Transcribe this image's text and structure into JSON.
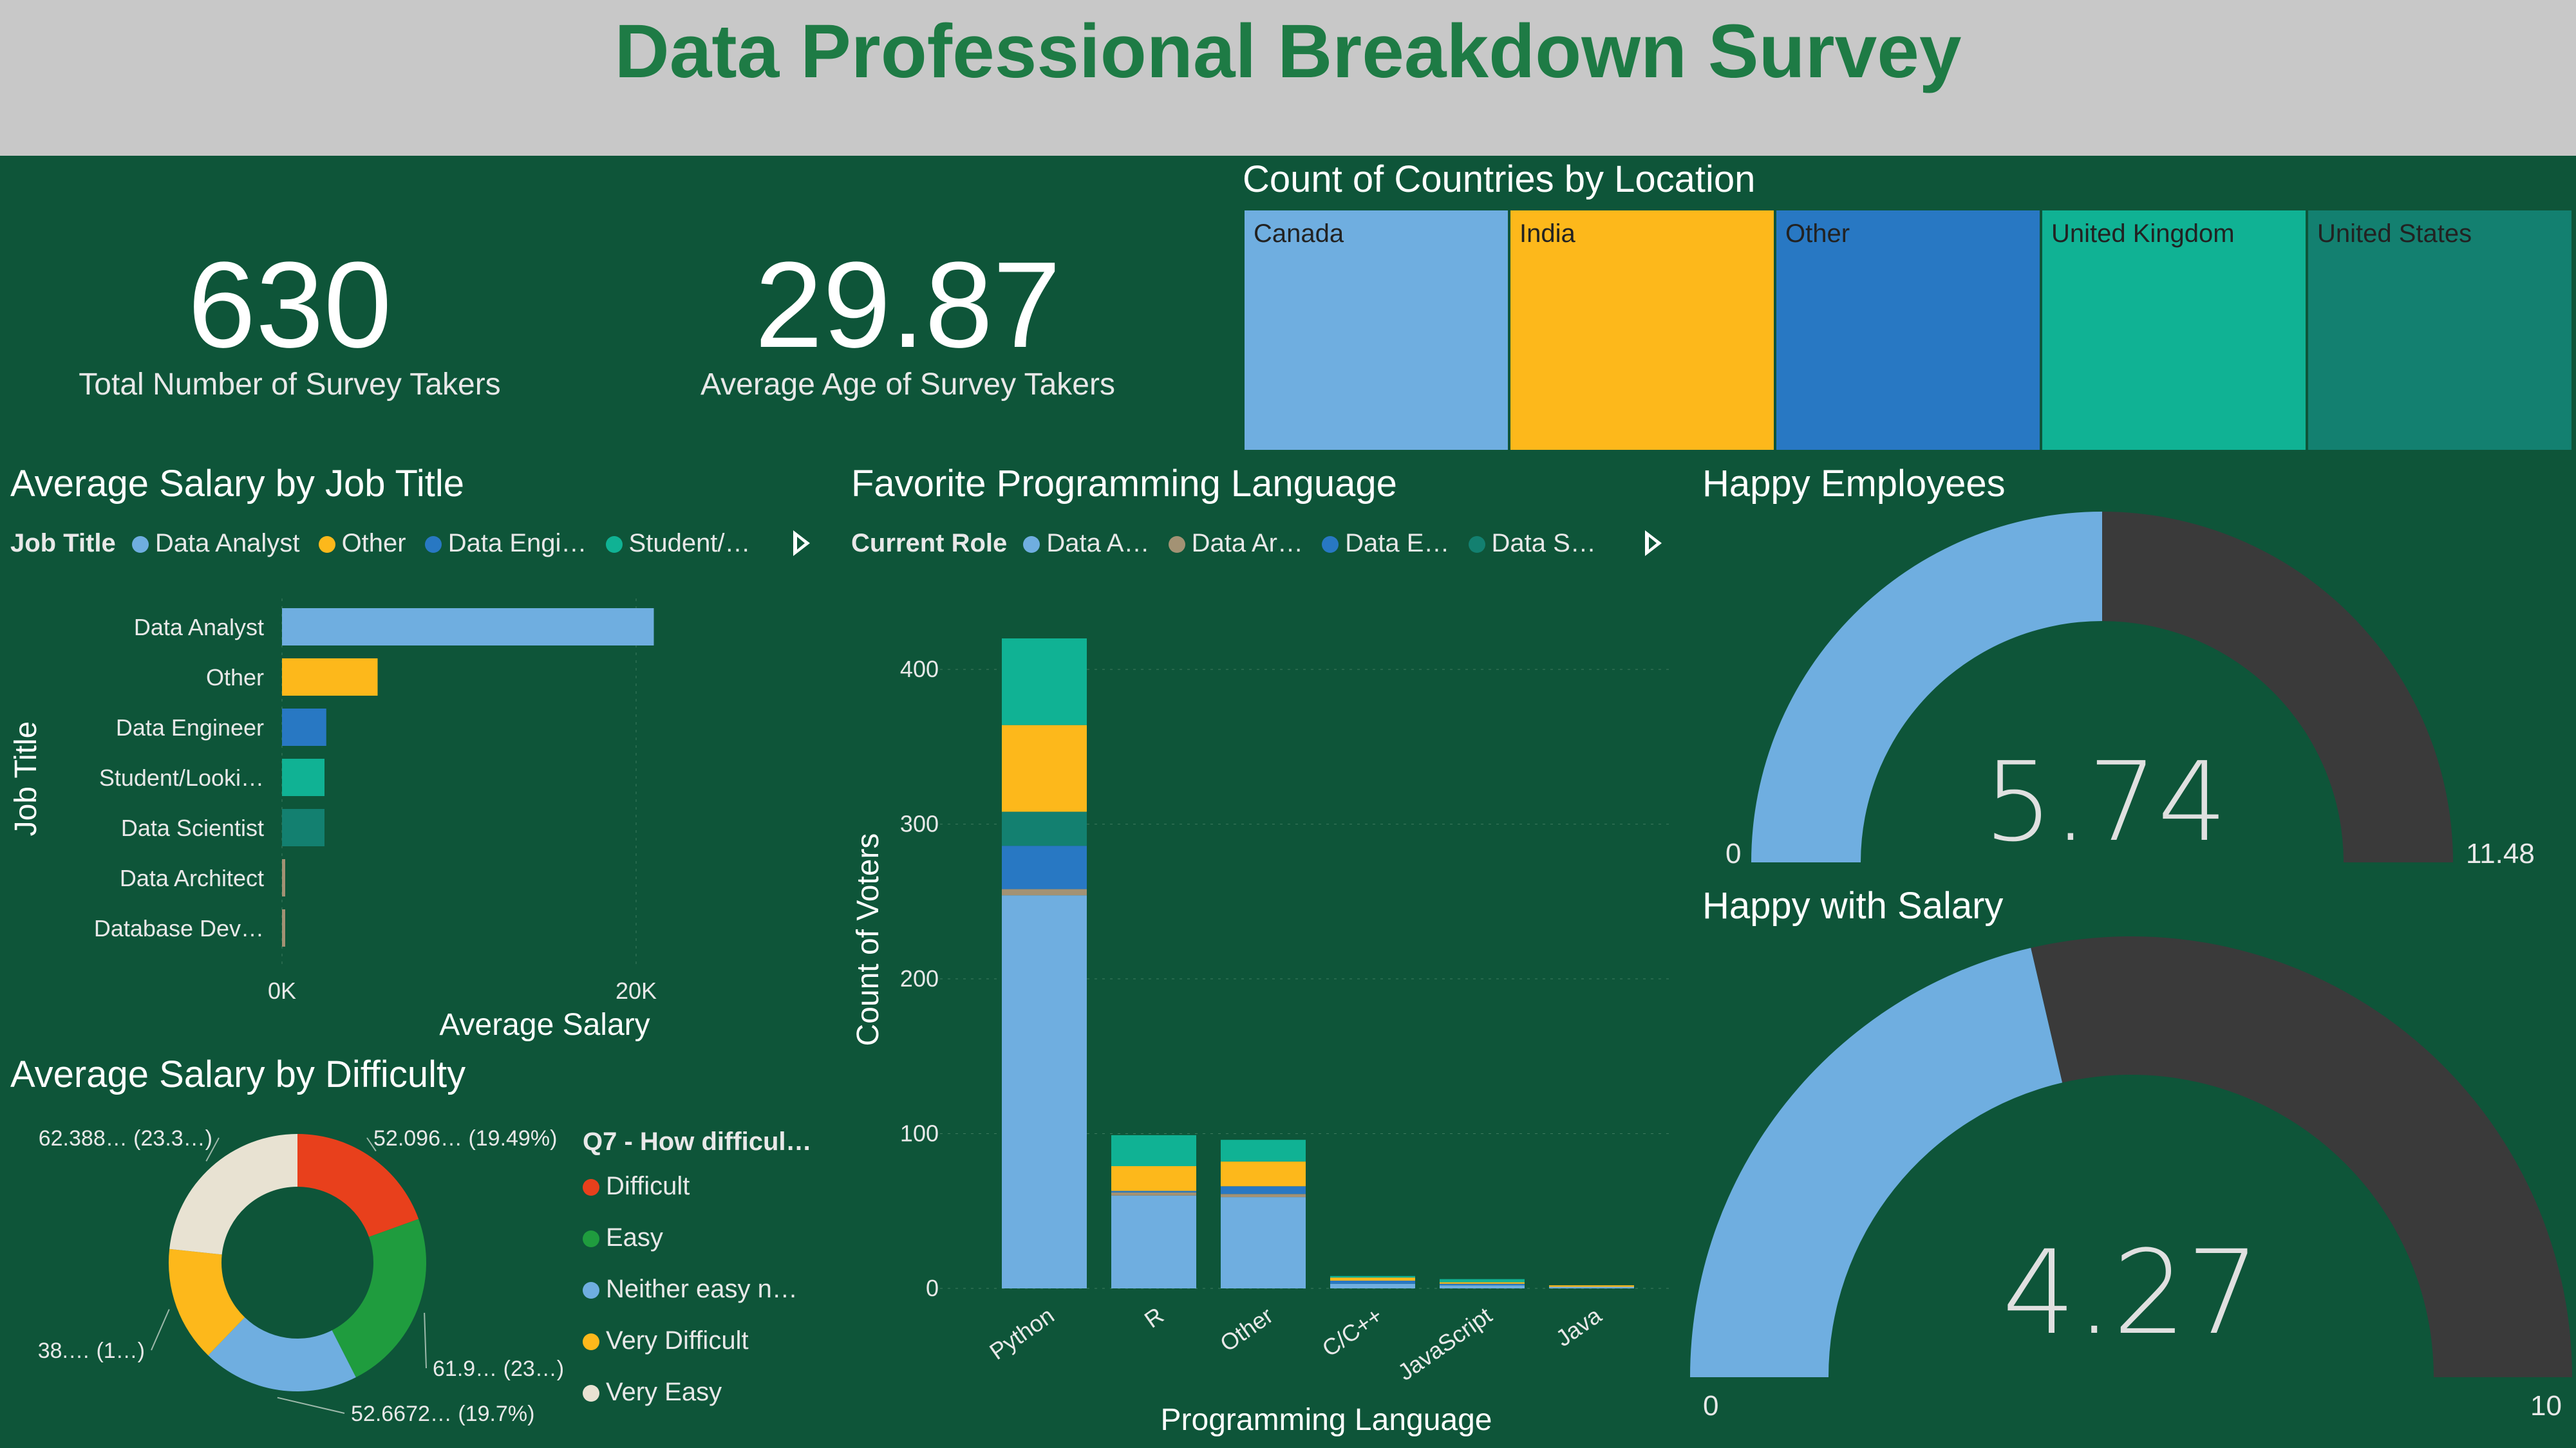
{
  "header": {
    "title": "Data Professional Breakdown Survey"
  },
  "kpis": [
    {
      "value": "630",
      "label": "Total Number of Survey Takers"
    },
    {
      "value": "29.87",
      "label": "Average Age of Survey Takers"
    }
  ],
  "chart_data": [
    {
      "type": "treemap",
      "title": "Count of Countries by Location",
      "categories": [
        "Canada",
        "India",
        "Other",
        "United Kingdom",
        "United States"
      ],
      "colors": [
        "#6FAEE0",
        "#FDB81B",
        "#2878C3",
        "#10B294",
        "#138070"
      ]
    },
    {
      "type": "bar",
      "orientation": "horizontal",
      "title": "Average Salary by Job Title",
      "legend_title": "Job Title",
      "legend": [
        "Data Analyst",
        "Other",
        "Data Engi…",
        "Student/…"
      ],
      "categories": [
        "Data Analyst",
        "Other",
        "Data Engineer",
        "Student/Looki…",
        "Data Scientist",
        "Data Architect",
        "Database Dev…"
      ],
      "values": [
        21000,
        5400,
        2500,
        2400,
        2400,
        150,
        120
      ],
      "colors": [
        "#6FAEE0",
        "#FDB81B",
        "#2878C3",
        "#10B294",
        "#138070",
        "#A39274",
        "#A39274"
      ],
      "xlabel": "Average Salary",
      "ylabel": "Job Title",
      "xlim": [
        0,
        22000
      ],
      "xticks": [
        {
          "v": 0,
          "label": "0K"
        },
        {
          "v": 20000,
          "label": "20K"
        }
      ]
    },
    {
      "type": "bar",
      "stacked": true,
      "title": "Favorite Programming Language",
      "legend_title": "Current Role",
      "legend": [
        "Data A…",
        "Data Ar…",
        "Data E…",
        "Data S…"
      ],
      "categories": [
        "Python",
        "R",
        "Other",
        "C/C++",
        "JavaScript",
        "Java"
      ],
      "series": [
        {
          "values": [
            254,
            60,
            59,
            3,
            2,
            1
          ],
          "color": "#6FAEE0"
        },
        {
          "values": [
            4,
            2,
            2,
            0,
            0,
            0
          ],
          "color": "#A39274"
        },
        {
          "values": [
            28,
            1,
            5,
            2,
            1,
            0
          ],
          "color": "#2878C3"
        },
        {
          "values": [
            22,
            0,
            0,
            0,
            0,
            0
          ],
          "color": "#138070"
        },
        {
          "values": [
            56,
            16,
            16,
            2,
            1,
            1
          ],
          "color": "#FDB81B"
        },
        {
          "values": [
            56,
            20,
            14,
            1,
            2,
            0
          ],
          "color": "#10B294"
        }
      ],
      "xlabel": "Programming Language",
      "ylabel": "Count of Voters",
      "ylim": [
        0,
        420
      ],
      "yticks": [
        0,
        100,
        200,
        300,
        400
      ]
    },
    {
      "type": "pie",
      "title": "Average Salary by Difficulty",
      "legend_title": "Q7 - How difficul…",
      "categories": [
        "Difficult",
        "Easy",
        "Neither easy n…",
        "Very Difficult",
        "Very Easy"
      ],
      "values": [
        19.49,
        23.0,
        19.7,
        14.5,
        23.3
      ],
      "colors": [
        "#E8401C",
        "#1F9C3E",
        "#6FAEE0",
        "#FDB81B",
        "#E8E2D2"
      ],
      "labels": [
        "52.096… (19.49%)",
        "61.9… (23…)",
        "52.6672… (19.7%)",
        "38.… (1…)",
        "62.388… (23.3…)"
      ]
    },
    {
      "type": "gauge",
      "title": "Happy Employees",
      "value": 5.74,
      "value_label": "5.74",
      "min": 0,
      "max": 11.48,
      "min_label": "0",
      "max_label": "11.48",
      "fill_color": "#6FAEE0",
      "track_color": "#3A3A3A"
    },
    {
      "type": "gauge",
      "title": "Happy with Salary",
      "value": 4.27,
      "value_label": "4.27",
      "min": 0,
      "max": 10,
      "min_label": "0",
      "max_label": "10",
      "fill_color": "#6FAEE0",
      "track_color": "#3A3A3A"
    }
  ]
}
